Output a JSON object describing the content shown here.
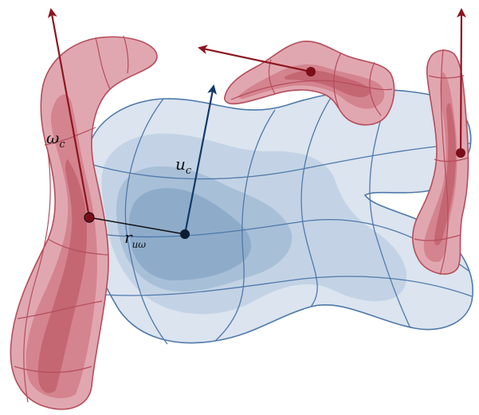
{
  "colors": {
    "blue_fill_outer": "#dbe4ef",
    "blue_fill_mid": "#c3d3e5",
    "blue_fill_inner": "#a8bfd8",
    "blue_fill_core": "#8aa8c8",
    "blue_stroke": "#4f79aa",
    "red_fill_outer": "#e1a7b0",
    "red_fill_mid": "#d4848f",
    "red_fill_core": "#c56673",
    "red_stroke": "#b54d5c",
    "red_arrow": "#8c1620",
    "blue_arrow": "#103a6a",
    "point_red": "#7a0f1a",
    "point_dark": "#0d1d33"
  },
  "labels": {
    "omega": {
      "main": "ω",
      "sub": "c"
    },
    "u": {
      "main": "u",
      "sub": "c"
    },
    "r": {
      "main": "r",
      "sub": "uω"
    }
  }
}
